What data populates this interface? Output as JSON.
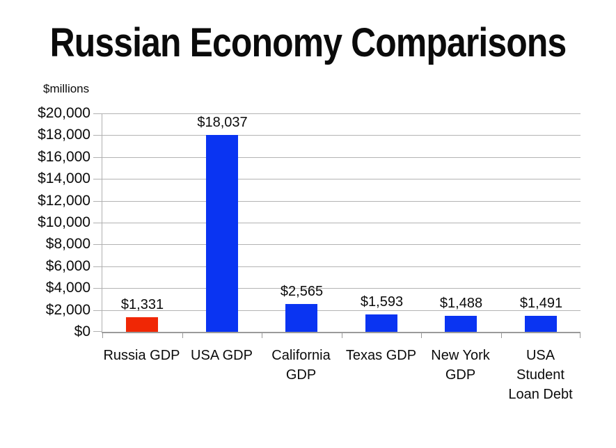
{
  "page": {
    "background": "#ffffff"
  },
  "chart_data": {
    "type": "bar",
    "title": "Russian Economy Comparisons",
    "units_label": "$millions",
    "xlabel": "",
    "ylabel": "$millions",
    "categories": [
      "Russia GDP",
      "USA GDP",
      "California GDP",
      "Texas GDP",
      "New York GDP",
      "USA Student Loan Debt"
    ],
    "category_label_lines": [
      [
        "Russia GDP"
      ],
      [
        "USA GDP"
      ],
      [
        "California",
        "GDP"
      ],
      [
        "Texas GDP"
      ],
      [
        "New York",
        "GDP"
      ],
      [
        "USA",
        "Student",
        "Loan Debt"
      ]
    ],
    "values": [
      1331,
      18037,
      2565,
      1593,
      1488,
      1491
    ],
    "value_labels": [
      "$1,331",
      "$18,037",
      "$2,565",
      "$1,593",
      "$1,488",
      "$1,491"
    ],
    "bar_colors": [
      "#f02705",
      "#0a34f2",
      "#0a34f2",
      "#0a34f2",
      "#0a34f2",
      "#0a34f2"
    ],
    "ylim": [
      0,
      20000
    ],
    "ytick_step": 2000,
    "ytick_labels_top_to_bottom": [
      "$20,000",
      "$18,000",
      "$16,000",
      "$14,000",
      "$12,000",
      "$10,000",
      "$8,000",
      "$6,000",
      "$4,000",
      "$2,000",
      "$0"
    ],
    "grid": true,
    "legend": "none",
    "colors": {
      "highlight_bar": "#f02705",
      "default_bar": "#0a34f2",
      "gridline": "#b3b3b3",
      "axis": "#9a9a9a",
      "text": "#0b0b0b"
    }
  }
}
